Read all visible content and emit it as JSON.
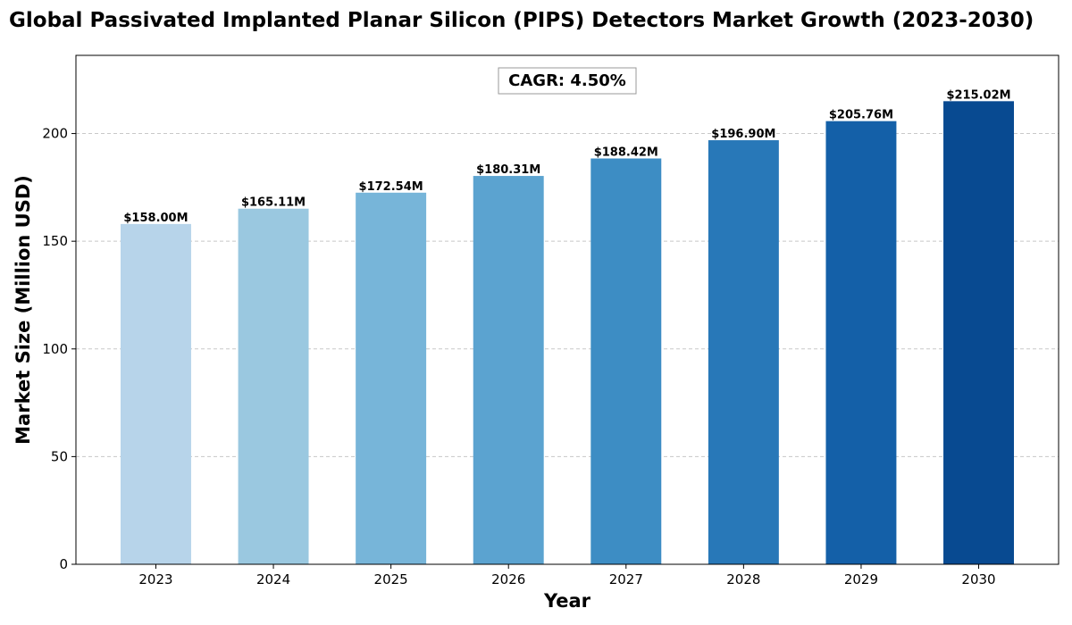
{
  "chart_data": {
    "type": "bar",
    "title": "Global Passivated Implanted Planar Silicon (PIPS) Detectors Market Growth (2023-2030)",
    "xlabel": "Year",
    "ylabel": "Market Size (Million USD)",
    "categories": [
      "2023",
      "2024",
      "2025",
      "2026",
      "2027",
      "2028",
      "2029",
      "2030"
    ],
    "values": [
      158.0,
      165.11,
      172.54,
      180.31,
      188.42,
      196.9,
      205.76,
      215.02
    ],
    "data_labels": [
      "$158.00M",
      "$165.11M",
      "$172.54M",
      "$180.31M",
      "$188.42M",
      "$196.90M",
      "$205.76M",
      "$215.02M"
    ],
    "colors": [
      "#b7d4ea",
      "#9ac8e0",
      "#77b5d9",
      "#5ba3d0",
      "#3d8dc4",
      "#2878b8",
      "#1460a8",
      "#084a91"
    ],
    "ylim": [
      0,
      236.3
    ],
    "yticks": [
      0,
      50,
      100,
      150,
      200
    ],
    "grid": "y-dashed",
    "annotation": "CAGR: 4.50%"
  }
}
